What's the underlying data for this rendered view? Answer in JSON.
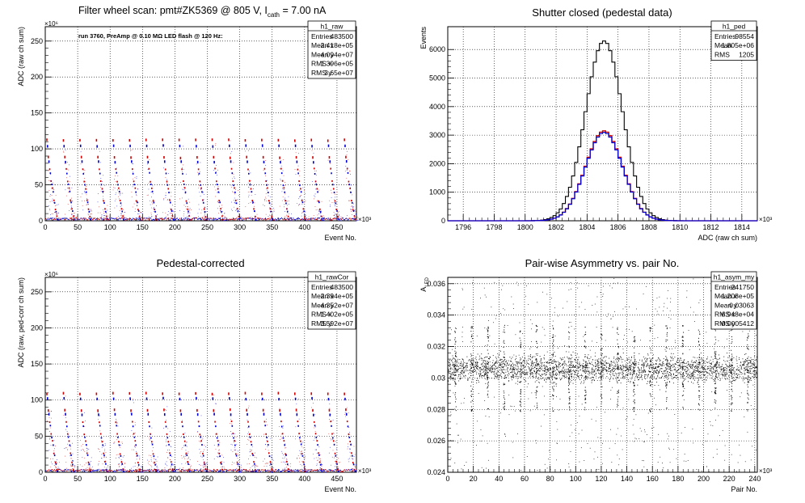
{
  "chart_data": [
    {
      "type": "scatter",
      "title": "Filter wheel scan: pmt#ZK5369 @   805 V, I",
      "title_sub": "cath",
      "title_tail": " = 7.00 nA",
      "annotation": "run 3760, PreAmp @ 0.10 MΩ LED flash @  120 Hz:",
      "xlabel": "Event No.",
      "ylabel": "ADC (raw ch sum)",
      "x_exp": "×10³",
      "y_exp": "×10⁶",
      "xlim": [
        0,
        480
      ],
      "ylim": [
        0,
        270
      ],
      "xticks": [
        0,
        50,
        100,
        150,
        200,
        250,
        300,
        350,
        400,
        450
      ],
      "yticks": [
        0,
        50,
        100,
        150,
        200,
        250
      ],
      "grid": true,
      "series_colors": [
        "#d00000",
        "#0000d0"
      ],
      "level_sets": [
        {
          "color": "#d00000",
          "levels": [
            112,
            88,
            72,
            55,
            45,
            28,
            16,
            6
          ]
        },
        {
          "color": "#0000d0",
          "levels": [
            104,
            82,
            66,
            50,
            40,
            25,
            13,
            2
          ]
        }
      ],
      "cycle_period": 25.5,
      "stats": {
        "name": "h1_raw",
        "rows": [
          [
            "Entries",
            "483500"
          ],
          [
            "Mean x",
            "2.418e+05"
          ],
          [
            "Mean y",
            "4.094e+07"
          ],
          [
            "RMS x",
            "1.396e+05"
          ],
          [
            "RMS y",
            "3.65e+07"
          ]
        ]
      }
    },
    {
      "type": "line",
      "title": "Shutter closed (pedestal data)",
      "xlabel": "ADC (raw ch sum)",
      "ylabel": "Events",
      "x_exp": "×10³",
      "xlim": [
        1795,
        1815
      ],
      "ylim": [
        0,
        6800
      ],
      "xticks": [
        1796,
        1798,
        1800,
        1802,
        1804,
        1806,
        1808,
        1810,
        1812,
        1814
      ],
      "yticks": [
        0,
        1000,
        2000,
        3000,
        4000,
        5000,
        6000
      ],
      "grid": true,
      "series": [
        {
          "color": "#000000",
          "mean": 1805.1,
          "sigma": 1.2,
          "peak": 6300
        },
        {
          "color": "#d00000",
          "mean": 1805.1,
          "sigma": 1.2,
          "peak": 3150
        },
        {
          "color": "#0000d0",
          "mean": 1805.1,
          "sigma": 1.2,
          "peak": 3100
        }
      ],
      "stats": {
        "name": "h1_ped",
        "rows": [
          [
            "Entries",
            "98554"
          ],
          [
            "Mean",
            "1.805e+06"
          ],
          [
            "RMS",
            "1205"
          ]
        ]
      }
    },
    {
      "type": "scatter",
      "title": "Pedestal-corrected",
      "xlabel": "Event No.",
      "ylabel": "ADC (raw, ped-corr ch sum)",
      "x_exp": "×10³",
      "y_exp": "×10⁶",
      "xlim": [
        0,
        480
      ],
      "ylim": [
        0,
        270
      ],
      "xticks": [
        0,
        50,
        100,
        150,
        200,
        250,
        300,
        350,
        400,
        450
      ],
      "yticks": [
        0,
        50,
        100,
        150,
        200,
        250
      ],
      "grid": true,
      "series_colors": [
        "#d00000",
        "#0000d0"
      ],
      "level_sets": [
        {
          "color": "#d00000",
          "levels": [
            109,
            86,
            70,
            53,
            43,
            26,
            14,
            4
          ]
        },
        {
          "color": "#0000d0",
          "levels": [
            102,
            80,
            64,
            48,
            38,
            23,
            11,
            1
          ]
        }
      ],
      "cycle_period": 25.5,
      "stats": {
        "name": "h1_rawCor",
        "rows": [
          [
            "Entries",
            "483500"
          ],
          [
            "Mean x",
            "2.394e+05"
          ],
          [
            "Mean y",
            "4.352e+07"
          ],
          [
            "RMS x",
            "1.402e+05"
          ],
          [
            "RMS y",
            "3.592e+07"
          ]
        ]
      }
    },
    {
      "type": "scatter",
      "title": "Pair-wise Asymmetry vs. pair No.",
      "xlabel": "Pair No.",
      "ylabel": "A",
      "ylabel_sub": "LED",
      "x_exp": "×10³",
      "xlim": [
        0,
        242
      ],
      "ylim": [
        0.024,
        0.0364
      ],
      "xticks": [
        0,
        20,
        40,
        60,
        80,
        100,
        120,
        140,
        160,
        180,
        200,
        220,
        240
      ],
      "yticks": [
        0.024,
        0.026,
        0.028,
        0.03,
        0.032,
        0.034,
        0.036
      ],
      "grid": true,
      "band_center": 0.0306,
      "band_halfwidth": 0.0008,
      "spike_period": 12.7,
      "stats": {
        "name": "h1_asym_my",
        "rows": [
          [
            "Entries",
            "241750"
          ],
          [
            "Mean x",
            "1.208e+05"
          ],
          [
            "Mean y",
            "0.03063"
          ],
          [
            "RMS x",
            "6.948e+04"
          ],
          [
            "RMS y",
            "0.0005412"
          ]
        ]
      }
    }
  ]
}
